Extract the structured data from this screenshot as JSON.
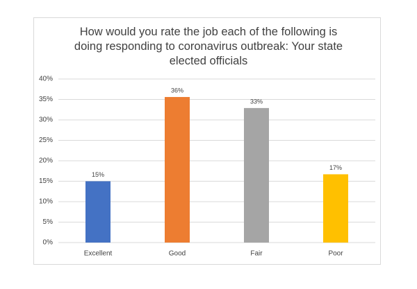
{
  "chart_data": {
    "type": "bar",
    "title": "How would you rate the job each of the following is doing responding to coronavirus outbreak: Your state elected officials",
    "categories": [
      "Excellent",
      "Good",
      "Fair",
      "Poor"
    ],
    "values": [
      15,
      35.6,
      32.9,
      16.7
    ],
    "value_labels": [
      "15%",
      "36%",
      "33%",
      "17%"
    ],
    "colors": [
      "#4472c4",
      "#ed7d31",
      "#a5a5a5",
      "#ffc000"
    ],
    "ylim": [
      0,
      40
    ],
    "yticks": [
      {
        "value": 0,
        "label": "0%"
      },
      {
        "value": 5,
        "label": "5%"
      },
      {
        "value": 10,
        "label": "10%"
      },
      {
        "value": 15,
        "label": "15%"
      },
      {
        "value": 20,
        "label": "20%"
      },
      {
        "value": 25,
        "label": "25%"
      },
      {
        "value": 30,
        "label": "30%"
      },
      {
        "value": 35,
        "label": "35%"
      },
      {
        "value": 40,
        "label": "40%"
      }
    ],
    "grid": true
  }
}
